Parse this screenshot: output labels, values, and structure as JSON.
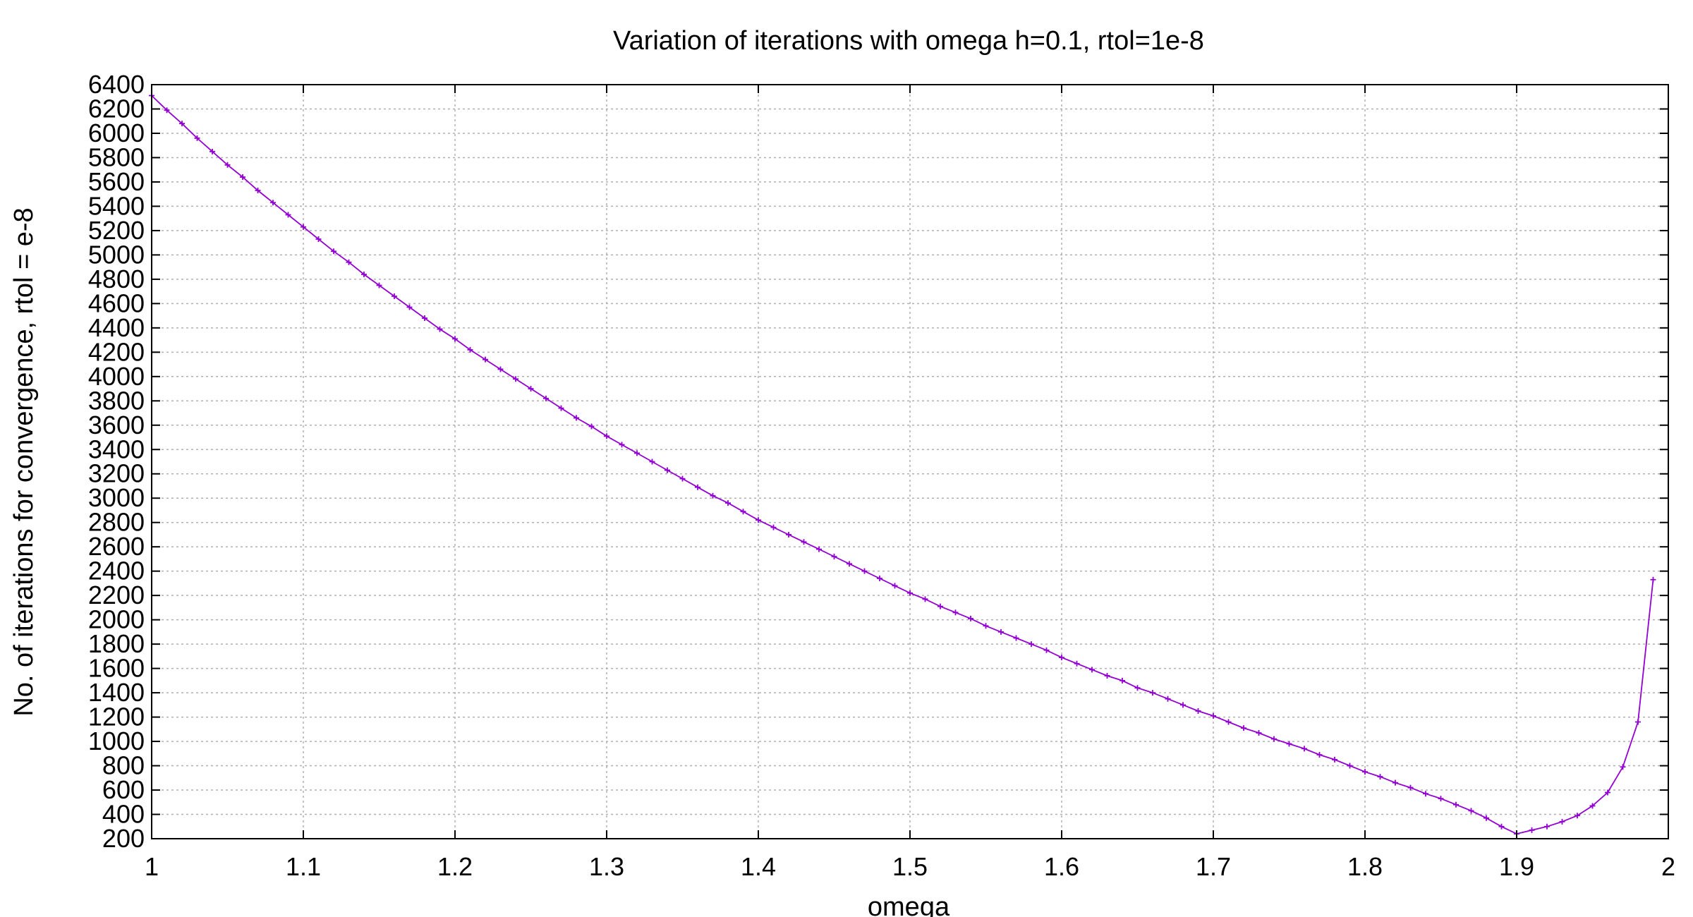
{
  "chart_data": {
    "type": "line",
    "title": "Variation of iterations with omega h=0.1, rtol=1e-8",
    "xlabel": "omega",
    "ylabel": "No. of iterations for convergence, rtol = e-8",
    "xlim": [
      1,
      2
    ],
    "ylim": [
      200,
      6400
    ],
    "x_ticks": [
      "1",
      "1.1",
      "1.2",
      "1.3",
      "1.4",
      "1.5",
      "1.6",
      "1.7",
      "1.8",
      "1.9",
      "2"
    ],
    "y_ticks": [
      "200",
      "400",
      "600",
      "800",
      "1000",
      "1200",
      "1400",
      "1600",
      "1800",
      "2000",
      "2200",
      "2400",
      "2600",
      "2800",
      "3000",
      "3200",
      "3400",
      "3600",
      "3800",
      "4000",
      "4200",
      "4400",
      "4600",
      "4800",
      "5000",
      "5200",
      "5400",
      "5600",
      "5800",
      "6000",
      "6200",
      "6400"
    ],
    "grid": true,
    "legend": "none",
    "series": [
      {
        "color": "#9400d3",
        "marker": "plus",
        "x": [
          1.0,
          1.01,
          1.02,
          1.03,
          1.04,
          1.05,
          1.06,
          1.07,
          1.08,
          1.09,
          1.1,
          1.11,
          1.12,
          1.13,
          1.14,
          1.15,
          1.16,
          1.17,
          1.18,
          1.19,
          1.2,
          1.21,
          1.22,
          1.23,
          1.24,
          1.25,
          1.26,
          1.27,
          1.28,
          1.29,
          1.3,
          1.31,
          1.32,
          1.33,
          1.34,
          1.35,
          1.36,
          1.37,
          1.38,
          1.39,
          1.4,
          1.41,
          1.42,
          1.43,
          1.44,
          1.45,
          1.46,
          1.47,
          1.48,
          1.49,
          1.5,
          1.51,
          1.52,
          1.53,
          1.54,
          1.55,
          1.56,
          1.57,
          1.58,
          1.59,
          1.6,
          1.61,
          1.62,
          1.63,
          1.64,
          1.65,
          1.66,
          1.67,
          1.68,
          1.69,
          1.7,
          1.71,
          1.72,
          1.73,
          1.74,
          1.75,
          1.76,
          1.77,
          1.78,
          1.79,
          1.8,
          1.81,
          1.82,
          1.83,
          1.84,
          1.85,
          1.86,
          1.87,
          1.88,
          1.89,
          1.9,
          1.91,
          1.92,
          1.93,
          1.94,
          1.95,
          1.96,
          1.97,
          1.98,
          1.99
        ],
        "y": [
          6310,
          6190,
          6080,
          5960,
          5850,
          5740,
          5640,
          5530,
          5430,
          5330,
          5230,
          5130,
          5030,
          4940,
          4840,
          4750,
          4660,
          4570,
          4480,
          4390,
          4310,
          4220,
          4140,
          4060,
          3980,
          3900,
          3820,
          3740,
          3660,
          3590,
          3510,
          3440,
          3370,
          3300,
          3230,
          3160,
          3090,
          3020,
          2960,
          2890,
          2820,
          2760,
          2700,
          2640,
          2580,
          2520,
          2460,
          2400,
          2340,
          2280,
          2220,
          2170,
          2110,
          2060,
          2010,
          1950,
          1900,
          1850,
          1800,
          1750,
          1690,
          1640,
          1590,
          1540,
          1500,
          1440,
          1400,
          1350,
          1300,
          1250,
          1210,
          1160,
          1110,
          1070,
          1020,
          980,
          940,
          890,
          850,
          800,
          750,
          710,
          660,
          620,
          570,
          530,
          480,
          430,
          370,
          300,
          240,
          270,
          300,
          340,
          390,
          470,
          580,
          790,
          1160,
          2330
        ]
      }
    ]
  }
}
